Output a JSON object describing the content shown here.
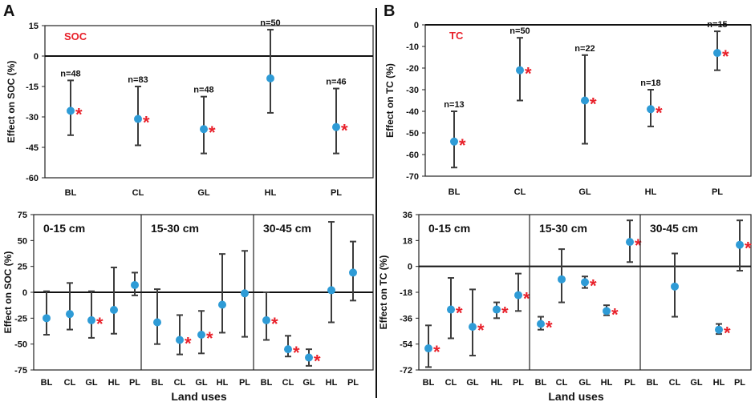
{
  "panel_labels": [
    "A",
    "B"
  ],
  "x_axis_title": "Land uses",
  "colors": {
    "marker": "#2e9bd6",
    "star": "#e8202a",
    "bar": "#3c3c3c",
    "title": "#e8202a"
  },
  "chart_data": [
    {
      "id": "A-top",
      "type": "scatter",
      "title": "SOC",
      "ylabel": "Effect on SOC (%)",
      "categories": [
        "BL",
        "CL",
        "GL",
        "HL",
        "PL"
      ],
      "ylim": [
        -60,
        15
      ],
      "yticks": [
        15,
        0,
        -15,
        -30,
        -45,
        -60
      ],
      "points": [
        {
          "cat": "BL",
          "mean": -27,
          "lo": -39,
          "hi": -12,
          "sig": true,
          "n": "n=48"
        },
        {
          "cat": "CL",
          "mean": -31,
          "lo": -44,
          "hi": -15,
          "sig": true,
          "n": "n=83"
        },
        {
          "cat": "GL",
          "mean": -36,
          "lo": -48,
          "hi": -20,
          "sig": true,
          "n": "n=48"
        },
        {
          "cat": "HL",
          "mean": -11,
          "lo": -28,
          "hi": 13,
          "sig": false,
          "n": "n=50"
        },
        {
          "cat": "PL",
          "mean": -35,
          "lo": -48,
          "hi": -16,
          "sig": true,
          "n": "n=46"
        }
      ]
    },
    {
      "id": "B-top",
      "type": "scatter",
      "title": "TC",
      "ylabel": "Effect on TC (%)",
      "categories": [
        "BL",
        "CL",
        "GL",
        "HL",
        "PL"
      ],
      "ylim": [
        -70,
        0
      ],
      "yticks": [
        0,
        -10,
        -20,
        -30,
        -40,
        -50,
        -60,
        -70
      ],
      "points": [
        {
          "cat": "BL",
          "mean": -54,
          "lo": -66,
          "hi": -40,
          "sig": true,
          "n": "n=13"
        },
        {
          "cat": "CL",
          "mean": -21,
          "lo": -35,
          "hi": -6,
          "sig": true,
          "n": "n=50"
        },
        {
          "cat": "GL",
          "mean": -35,
          "lo": -55,
          "hi": -14,
          "sig": true,
          "n": "n=22"
        },
        {
          "cat": "HL",
          "mean": -39,
          "lo": -47,
          "hi": -30,
          "sig": true,
          "n": "n=18"
        },
        {
          "cat": "PL",
          "mean": -13,
          "lo": -21,
          "hi": -3,
          "sig": true,
          "n": "n=15"
        }
      ]
    },
    {
      "id": "A-bottom",
      "type": "scatter",
      "ylabel": "Effect on SOC (%)",
      "xlabel": "Land uses",
      "ylim": [
        -75,
        75
      ],
      "yticks": [
        75,
        50,
        25,
        0,
        -25,
        -50,
        -75
      ],
      "categories": [
        "BL",
        "CL",
        "GL",
        "HL",
        "PL"
      ],
      "groups": [
        {
          "label": "0-15 cm",
          "points": [
            {
              "cat": "BL",
              "mean": -25,
              "lo": -41,
              "hi": 1,
              "sig": false
            },
            {
              "cat": "CL",
              "mean": -21,
              "lo": -36,
              "hi": 9,
              "sig": false
            },
            {
              "cat": "GL",
              "mean": -27,
              "lo": -44,
              "hi": 1,
              "sig": true
            },
            {
              "cat": "HL",
              "mean": -17,
              "lo": -40,
              "hi": 24,
              "sig": false
            },
            {
              "cat": "PL",
              "mean": 7,
              "lo": -3,
              "hi": 19,
              "sig": false
            }
          ]
        },
        {
          "label": "15-30 cm",
          "points": [
            {
              "cat": "BL",
              "mean": -29,
              "lo": -50,
              "hi": 3,
              "sig": false
            },
            {
              "cat": "CL",
              "mean": -46,
              "lo": -60,
              "hi": -22,
              "sig": true
            },
            {
              "cat": "GL",
              "mean": -41,
              "lo": -59,
              "hi": -18,
              "sig": true
            },
            {
              "cat": "HL",
              "mean": -12,
              "lo": -39,
              "hi": 37,
              "sig": false
            },
            {
              "cat": "PL",
              "mean": -1,
              "lo": -43,
              "hi": 40,
              "sig": false
            }
          ]
        },
        {
          "label": "30-45 cm",
          "points": [
            {
              "cat": "BL",
              "mean": -27,
              "lo": -46,
              "hi": 0,
              "sig": true
            },
            {
              "cat": "CL",
              "mean": -55,
              "lo": -62,
              "hi": -42,
              "sig": true
            },
            {
              "cat": "GL",
              "mean": -63,
              "lo": -71,
              "hi": -55,
              "sig": true
            },
            {
              "cat": "HL",
              "mean": 2,
              "lo": -29,
              "hi": 68,
              "sig": false
            },
            {
              "cat": "PL",
              "mean": 19,
              "lo": -8,
              "hi": 49,
              "sig": false
            }
          ]
        }
      ]
    },
    {
      "id": "B-bottom",
      "type": "scatter",
      "ylabel": "Effect on TC (%)",
      "xlabel": "Land uses",
      "ylim": [
        -72,
        36
      ],
      "yticks": [
        36,
        18,
        0,
        -18,
        -36,
        -54,
        -72
      ],
      "categories": [
        "BL",
        "CL",
        "GL",
        "HL",
        "PL"
      ],
      "groups": [
        {
          "label": "0-15 cm",
          "points": [
            {
              "cat": "BL",
              "mean": -57,
              "lo": -70,
              "hi": -41,
              "sig": true
            },
            {
              "cat": "CL",
              "mean": -30,
              "lo": -50,
              "hi": -8,
              "sig": true
            },
            {
              "cat": "GL",
              "mean": -42,
              "lo": -62,
              "hi": -16,
              "sig": true
            },
            {
              "cat": "HL",
              "mean": -30,
              "lo": -36,
              "hi": -25,
              "sig": true
            },
            {
              "cat": "PL",
              "mean": -20,
              "lo": -31,
              "hi": -5,
              "sig": true
            }
          ]
        },
        {
          "label": "15-30 cm",
          "points": [
            {
              "cat": "BL",
              "mean": -40,
              "lo": -44,
              "hi": -35,
              "sig": true
            },
            {
              "cat": "CL",
              "mean": -9,
              "lo": -25,
              "hi": 12,
              "sig": false
            },
            {
              "cat": "GL",
              "mean": -11,
              "lo": -15,
              "hi": -7,
              "sig": true
            },
            {
              "cat": "HL",
              "mean": -31,
              "lo": -34,
              "hi": -27,
              "sig": true
            },
            {
              "cat": "PL",
              "mean": 17,
              "lo": 3,
              "hi": 32,
              "sig": true
            }
          ]
        },
        {
          "label": "30-45 cm",
          "points": [
            {
              "cat": "BL",
              "mean": null,
              "lo": null,
              "hi": null,
              "sig": false
            },
            {
              "cat": "CL",
              "mean": -14,
              "lo": -35,
              "hi": 9,
              "sig": false
            },
            {
              "cat": "GL",
              "mean": null,
              "lo": null,
              "hi": null,
              "sig": false
            },
            {
              "cat": "HL",
              "mean": -44,
              "lo": -47,
              "hi": -40,
              "sig": true
            },
            {
              "cat": "PL",
              "mean": 15,
              "lo": -3,
              "hi": 32,
              "sig": true
            }
          ]
        }
      ]
    }
  ]
}
